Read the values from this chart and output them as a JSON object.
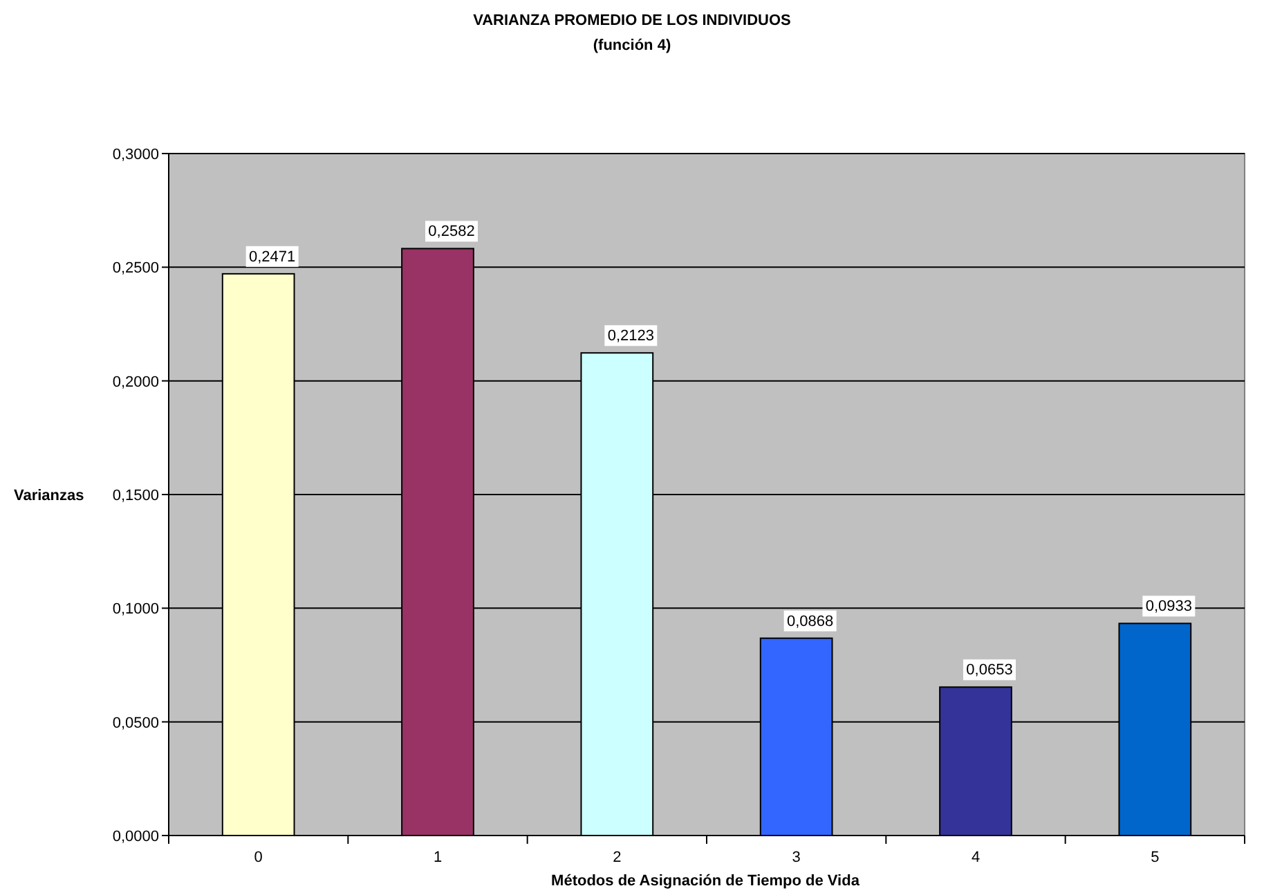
{
  "chart_data": {
    "type": "bar",
    "title": "VARIANZA PROMEDIO DE LOS INDIVIDUOS",
    "subtitle": "(función 4)",
    "xlabel": "Métodos de Asignación de Tiempo de Vida",
    "ylabel": "Varianzas",
    "categories": [
      "0",
      "1",
      "2",
      "3",
      "4",
      "5"
    ],
    "values": [
      0.2471,
      0.2582,
      0.2123,
      0.0868,
      0.0653,
      0.0933
    ],
    "colors": [
      "#ffffcc",
      "#993366",
      "#ccffff",
      "#3366ff",
      "#333399",
      "#0066cc"
    ],
    "value_labels": [
      "0,2471",
      "0,2582",
      "0,2123",
      "0,0868",
      "0,0653",
      "0,0933"
    ],
    "ylim": [
      0,
      0.3
    ],
    "yticks": [
      {
        "value": 0,
        "label": "0,0000"
      },
      {
        "value": 0.05,
        "label": "0,0500"
      },
      {
        "value": 0.1,
        "label": "0,1000"
      },
      {
        "value": 0.15,
        "label": "0,1500"
      },
      {
        "value": 0.2,
        "label": "0,2000"
      },
      {
        "value": 0.25,
        "label": "0,2500"
      },
      {
        "value": 0.3,
        "label": "0,3000"
      }
    ],
    "grid": "y"
  }
}
